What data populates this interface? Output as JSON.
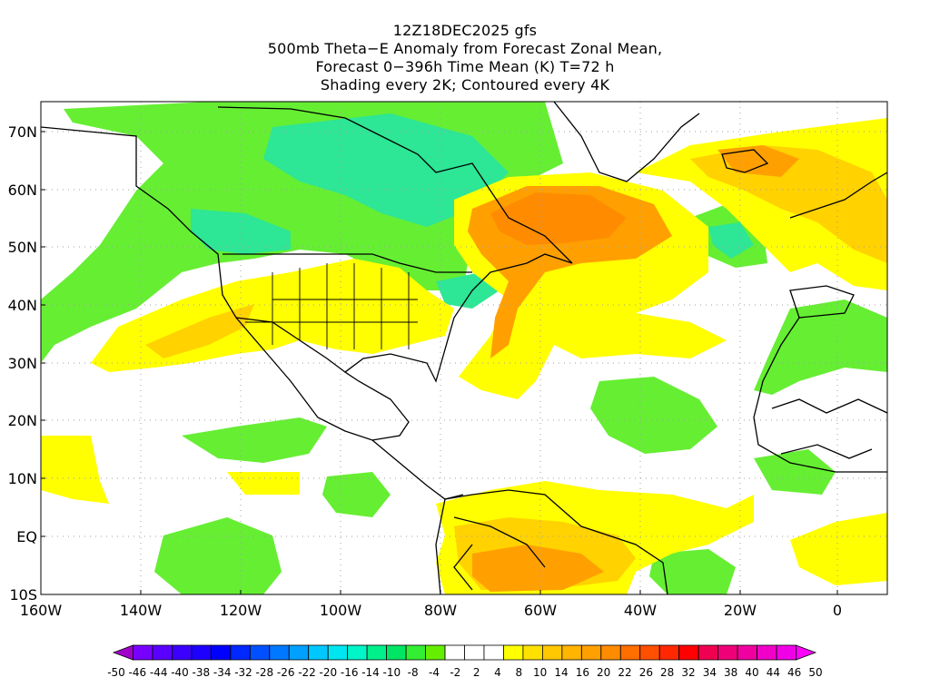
{
  "title": {
    "line1": "12Z18DEC2025 gfs",
    "line2": "500mb Theta−E Anomaly from Forecast Zonal Mean,",
    "line3": "Forecast 0−396h Time Mean (K) T=72 h",
    "line4": "Shading every 2K; Contoured every 4K"
  },
  "map": {
    "lat_labels": [
      "70N",
      "60N",
      "50N",
      "40N",
      "30N",
      "20N",
      "10N",
      "EQ",
      "10S"
    ],
    "lon_labels": [
      "160W",
      "140W",
      "120W",
      "100W",
      "80W",
      "60W",
      "40W",
      "20W",
      "0"
    ]
  },
  "colorbar": {
    "labels": [
      "-50",
      "-46",
      "-44",
      "-40",
      "-38",
      "-34",
      "-32",
      "-28",
      "-26",
      "-22",
      "-20",
      "-16",
      "-14",
      "-10",
      "-8",
      "-4",
      "-2",
      "2",
      "4",
      "8",
      "10",
      "14",
      "16",
      "20",
      "22",
      "26",
      "28",
      "32",
      "34",
      "38",
      "40",
      "44",
      "46",
      "50"
    ],
    "colors": [
      "#a000c8",
      "#7800ff",
      "#5a00ff",
      "#3c00ff",
      "#1e00ff",
      "#0000ff",
      "#0028ff",
      "#0050ff",
      "#0078ff",
      "#00a0ff",
      "#00c8ff",
      "#00e6f0",
      "#00f5c8",
      "#00f08c",
      "#00e664",
      "#33ee33",
      "#66ee00",
      "#ffffff",
      "#ffffff",
      "#ffffff",
      "#ffff00",
      "#ffe100",
      "#ffc800",
      "#ffb400",
      "#ffa000",
      "#ff8c00",
      "#ff6e00",
      "#ff5000",
      "#ff2800",
      "#ff0000",
      "#f00050",
      "#f00078",
      "#f000a0",
      "#f000c8",
      "#f000e6",
      "#ff00ff"
    ]
  },
  "colors": {
    "green_light": "#66ee33",
    "green_teal": "#2de696",
    "yellow": "#ffff00",
    "yellow_orange": "#ffd200",
    "orange": "#ffa000",
    "orange_dark": "#ff8c00",
    "coast": "#000000",
    "grid": "#a0a0a0"
  }
}
